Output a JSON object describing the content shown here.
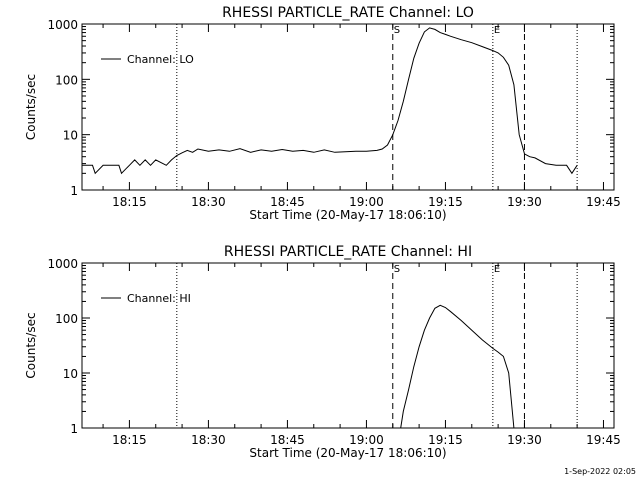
{
  "footer_date": "1-Sep-2022 02:05",
  "chart_data": [
    {
      "type": "line",
      "title": "RHESSI PARTICLE_RATE Channel: LO",
      "xlabel": "Start Time (20-May-17 18:06:10)",
      "ylabel": "Counts/sec",
      "yscale": "log",
      "xlim": [
        "18:06",
        "19:47"
      ],
      "ylim": [
        1,
        1000
      ],
      "x_ticks": [
        "18:15",
        "18:30",
        "18:45",
        "19:00",
        "19:15",
        "19:30",
        "19:45"
      ],
      "y_ticks": [
        "1",
        "10",
        "100",
        "1000"
      ],
      "legend": {
        "placement": "top-left",
        "label": "Channel: LO"
      },
      "markers": [
        {
          "label": "S",
          "time": "19:05",
          "style": "dashed"
        },
        {
          "label": "E",
          "time": "19:24",
          "style": "dotted"
        }
      ],
      "dashed_lines": [
        "19:05",
        "19:30"
      ],
      "dotted_lines": [
        "18:24",
        "19:24",
        "19:40"
      ],
      "series": [
        {
          "name": "Channel: LO",
          "x": [
            "18:06",
            "18:08",
            "18:08.5",
            "18:10",
            "18:12",
            "18:13",
            "18:13.5",
            "18:15",
            "18:16",
            "18:17",
            "18:18",
            "18:19",
            "18:20",
            "18:22",
            "18:23",
            "18:24",
            "18:25",
            "18:26",
            "18:27",
            "18:28",
            "18:30",
            "18:32",
            "18:34",
            "18:36",
            "18:38",
            "18:40",
            "18:42",
            "18:44",
            "18:46",
            "18:48",
            "18:50",
            "18:52",
            "18:54",
            "18:56",
            "18:58",
            "19:00",
            "19:02",
            "19:03",
            "19:04",
            "19:05",
            "19:06",
            "19:07",
            "19:08",
            "19:09",
            "19:10",
            "19:11",
            "19:12",
            "19:13",
            "19:14",
            "19:15",
            "19:16",
            "19:18",
            "19:20",
            "19:22",
            "19:24",
            "19:25",
            "19:26",
            "19:27",
            "19:28",
            "19:29",
            "19:30",
            "19:31",
            "19:32",
            "19:34",
            "19:36",
            "19:38",
            "19:39",
            "19:40"
          ],
          "y": [
            2.8,
            2.8,
            2.0,
            2.8,
            2.8,
            2.8,
            2.0,
            2.8,
            3.5,
            2.8,
            3.5,
            2.8,
            3.5,
            2.8,
            3.5,
            4.2,
            4.7,
            5.2,
            4.8,
            5.5,
            5.0,
            5.3,
            5.0,
            5.6,
            4.8,
            5.3,
            5.0,
            5.4,
            5.0,
            5.2,
            4.8,
            5.3,
            4.8,
            4.9,
            5.0,
            5.0,
            5.2,
            5.5,
            6.5,
            10,
            18,
            40,
            100,
            240,
            450,
            720,
            850,
            800,
            700,
            650,
            600,
            520,
            460,
            390,
            330,
            300,
            250,
            180,
            80,
            10,
            4.5,
            4.0,
            3.8,
            3.0,
            2.8,
            2.8,
            2.0,
            2.8
          ]
        }
      ]
    },
    {
      "type": "line",
      "title": "RHESSI PARTICLE_RATE Channel: HI",
      "xlabel": "Start Time (20-May-17 18:06:10)",
      "ylabel": "Counts/sec",
      "yscale": "log",
      "xlim": [
        "18:06",
        "19:47"
      ],
      "ylim": [
        1,
        1000
      ],
      "x_ticks": [
        "18:15",
        "18:30",
        "18:45",
        "19:00",
        "19:15",
        "19:30",
        "19:45"
      ],
      "y_ticks": [
        "1",
        "10",
        "100",
        "1000"
      ],
      "legend": {
        "placement": "top-left",
        "label": "Channel: HI"
      },
      "markers": [
        {
          "label": "S",
          "time": "19:05",
          "style": "dashed"
        },
        {
          "label": "E",
          "time": "19:24",
          "style": "dotted"
        }
      ],
      "dashed_lines": [
        "19:05",
        "19:30"
      ],
      "dotted_lines": [
        "18:24",
        "19:24",
        "19:40"
      ],
      "series": [
        {
          "name": "Channel: HI",
          "x": [
            "19:06.5",
            "19:07",
            "19:08",
            "19:09",
            "19:10",
            "19:11",
            "19:12",
            "19:13",
            "19:14",
            "19:15",
            "19:16",
            "19:18",
            "19:20",
            "19:22",
            "19:24",
            "19:25",
            "19:26",
            "19:27",
            "19:28"
          ],
          "y": [
            1,
            2,
            5,
            13,
            30,
            60,
            100,
            150,
            170,
            155,
            130,
            90,
            60,
            40,
            28,
            24,
            20,
            10,
            1
          ]
        }
      ]
    }
  ]
}
